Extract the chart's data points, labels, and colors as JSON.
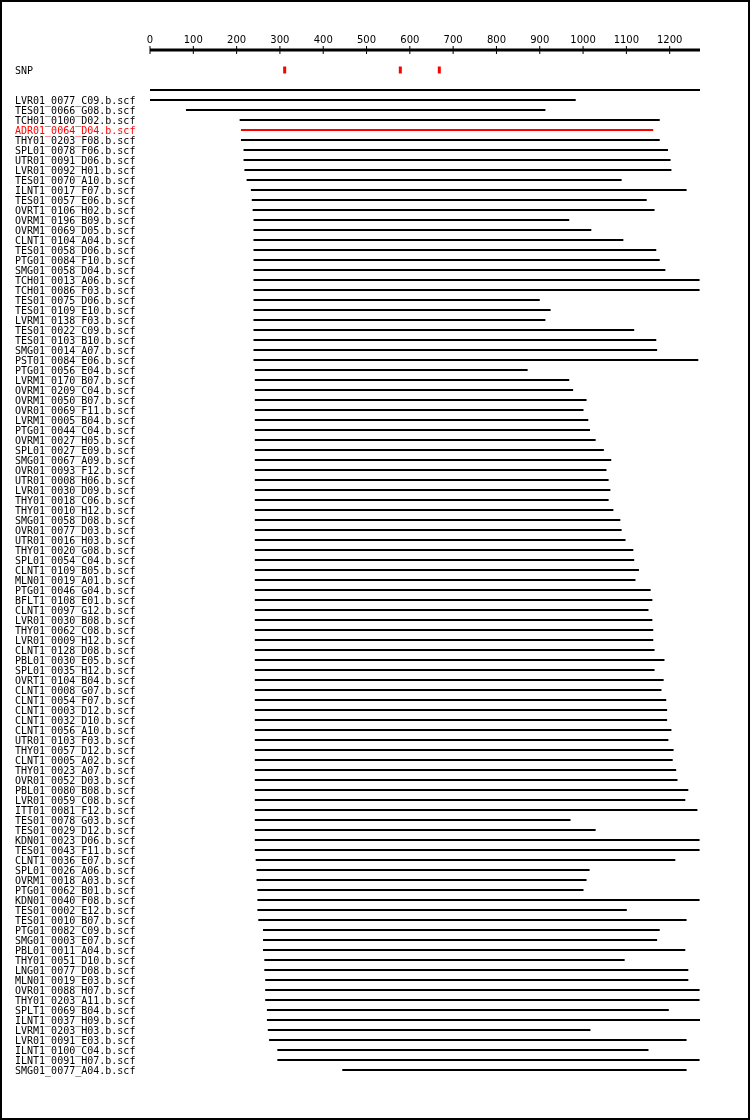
{
  "chart_data": {
    "type": "bar",
    "orientation": "horizontal",
    "marker": "square",
    "xlim": [
      0,
      1270
    ],
    "xticks": [
      0,
      100,
      200,
      300,
      400,
      500,
      600,
      700,
      800,
      900,
      1000,
      1100,
      1200
    ],
    "categories": [
      "SNP",
      null,
      null,
      "LVR01_0077_C09.b.scf",
      "TES01_0066_G08.b.scf",
      "TCH01_0100_D02.b.scf",
      "ADR01_0064_D04.b.scf",
      "THY01_0203_F08.b.scf",
      "SPL01_0078_F06.b.scf",
      "UTR01_0091_D06.b.scf",
      "LVR01_0092_H01.b.scf",
      "TES01_0070_A10.b.scf",
      "ILNT1_0017_F07.b.scf",
      "TES01_0057_E06.b.scf",
      "OVRT1_0106_H02.b.scf",
      "OVRM1_0196_B09.b.scf",
      "OVRM1_0069_D05.b.scf",
      "CLNT1_0104_A04.b.scf",
      "TES01_0058_D06.b.scf",
      "PTG01_0084_F10.b.scf",
      "SMG01_0058_D04.b.scf",
      "TCH01_0013_A06.b.scf",
      "TCH01_0086_F03.b.scf",
      "TES01_0075_D06.b.scf",
      "TES01_0109_E10.b.scf",
      "LVRM1_0138_F03.b.scf",
      "TES01_0022_C09.b.scf",
      "TES01_0103_B10.b.scf",
      "SMG01_0014_A07.b.scf",
      "PST01_0084_E06.b.scf",
      "PTG01_0056_E04.b.scf",
      "LVRM1_0170_B07.b.scf",
      "OVRM1_0209_C04.b.scf",
      "OVRM1_0050_B07.b.scf",
      "OVR01_0069_F11.b.scf",
      "LVRM1_0005_B04.b.scf",
      "PTG01_0044_C04.b.scf",
      "OVRM1_0027_H05.b.scf",
      "SPL01_0027_E09.b.scf",
      "SMG01_0067_A09.b.scf",
      "OVR01_0093_F12.b.scf",
      "UTR01_0008_H06.b.scf",
      "LVR01_0030_D09.b.scf",
      "THY01_0018_C06.b.scf",
      "THY01_0010_H12.b.scf",
      "SMG01_0058_D08.b.scf",
      "OVR01_0077_D03.b.scf",
      "UTR01_0016_H03.b.scf",
      "THY01_0020_G08.b.scf",
      "SPL01_0054_C04.b.scf",
      "CLNT1_0109_B05.b.scf",
      "MLN01_0019_A01.b.scf",
      "PTG01_0046_G04.b.scf",
      "BFLT1_0108_E01.b.scf",
      "CLNT1_0097_G12.b.scf",
      "LVR01_0030_B08.b.scf",
      "THY01_0062_C08.b.scf",
      "LVR01_0009_H12.b.scf",
      "CLNT1_0128_D08.b.scf",
      "PBL01_0030_E05.b.scf",
      "SPL01_0035_H12.b.scf",
      "OVRT1_0104_B04.b.scf",
      "CLNT1_0008_G07.b.scf",
      "CLNT1_0054_F07.b.scf",
      "CLNT1_0003_D12.b.scf",
      "CLNT1_0032_D10.b.scf",
      "CLNT1_0056_A10.b.scf",
      "UTR01_0103_F03.b.scf",
      "THY01_0057_D12.b.scf",
      "CLNT1_0005_A02.b.scf",
      "THY01_0023_A07.b.scf",
      "OVR01_0052_D03.b.scf",
      "PBL01_0080_B08.b.scf",
      "LVR01_0059_C08.b.scf",
      "ITT01_0081_F12.b.scf",
      "TES01_0078_G03.b.scf",
      "TES01_0029_D12.b.scf",
      "KDN01_0023_D06.b.scf",
      "TES01_0043_F11.b.scf",
      "CLNT1_0036_E07.b.scf",
      "SPL01_0026_A06.b.scf",
      "OVRM1_0018_A03.b.scf",
      "PTG01_0062_B01.b.scf",
      "KDN01_0040_F08.b.scf",
      "TES01_0002_E12.b.scf",
      "TES01_0010_B07.b.scf",
      "PTG01_0082_C09.b.scf",
      "SMG01_0003_E07.b.scf",
      "PBL01_0011_A04.b.scf",
      "THY01_0051_D10.b.scf",
      "LNG01_0077_D08.b.scf",
      "MLN01_0019_E03.b.scf",
      "OVR01_0088_H07.b.scf",
      "THY01_0203_A11.b.scf",
      "SPLT1_0069_B04.b.scf",
      "ILNT1_0037_H09.b.scf",
      "LVRM1_0203_H03.b.scf",
      "LVR01_0091_E03.b.scf",
      "ILNT1_0100_C04.b.scf",
      "ILNT1_0091_H07.b.scf",
      "SMG01_0077_A04.b.scf"
    ],
    "series": [
      {
        "base": [
          null,
          null,
          0,
          0,
          83,
          207,
          210,
          210,
          216,
          216,
          218,
          223,
          233,
          235,
          237,
          239,
          239,
          239,
          239,
          239,
          239,
          239,
          239,
          239,
          239,
          239,
          239,
          239,
          239,
          239,
          242,
          242,
          242,
          242,
          242,
          242,
          242,
          242,
          242,
          242,
          242,
          242,
          242,
          242,
          242,
          242,
          242,
          242,
          242,
          242,
          242,
          242,
          242,
          242,
          242,
          242,
          242,
          242,
          242,
          242,
          242,
          242,
          242,
          242,
          242,
          242,
          242,
          242,
          242,
          242,
          242,
          242,
          242,
          242,
          242,
          242,
          242,
          242,
          242,
          244,
          246,
          246,
          248,
          248,
          248,
          250,
          261,
          261,
          261,
          264,
          264,
          266,
          266,
          266,
          270,
          270,
          272,
          275,
          294,
          294,
          444
        ],
        "values": [
          null,
          null,
          1270,
          983,
          830,
          970,
          952,
          967,
          980,
          986,
          986,
          866,
          1006,
          912,
          928,
          729,
          780,
          854,
          930,
          938,
          951,
          1030,
          1030,
          661,
          686,
          674,
          879,
          930,
          932,
          1027,
          630,
          726,
          735,
          766,
          759,
          770,
          774,
          787,
          806,
          823,
          812,
          817,
          821,
          817,
          828,
          844,
          847,
          856,
          874,
          876,
          887,
          879,
          914,
          918,
          909,
          918,
          920,
          920,
          923,
          946,
          923,
          944,
          939,
          950,
          952,
          952,
          962,
          955,
          967,
          965,
          973,
          976,
          1001,
          994,
          1022,
          729,
          787,
          1027,
          1027,
          969,
          769,
          762,
          753,
          1021,
          853,
          989,
          916,
          910,
          975,
          832,
          979,
          977,
          1003,
          1003,
          928,
          1000,
          745,
          964,
          857,
          975,
          795
        ],
        "colors": [
          null,
          null,
          "#000000",
          "#000000",
          "#000000",
          "#000000",
          "#ff0000",
          "#000000",
          "#000000",
          "#000000",
          "#000000",
          "#000000",
          "#000000",
          "#000000",
          "#000000",
          "#000000",
          "#000000",
          "#000000",
          "#000000",
          "#000000",
          "#000000",
          "#000000",
          "#000000",
          "#000000",
          "#000000",
          "#000000",
          "#000000",
          "#000000",
          "#000000",
          "#000000",
          "#000000",
          "#000000",
          "#000000",
          "#000000",
          "#000000",
          "#000000",
          "#000000",
          "#000000",
          "#000000",
          "#000000",
          "#000000",
          "#000000",
          "#000000",
          "#000000",
          "#000000",
          "#000000",
          "#000000",
          "#000000",
          "#000000",
          "#000000",
          "#000000",
          "#000000",
          "#000000",
          "#000000",
          "#000000",
          "#000000",
          "#000000",
          "#000000",
          "#000000",
          "#000000",
          "#000000",
          "#000000",
          "#000000",
          "#000000",
          "#000000",
          "#000000",
          "#000000",
          "#000000",
          "#000000",
          "#000000",
          "#000000",
          "#000000",
          "#000000",
          "#000000",
          "#000000",
          "#000000",
          "#000000",
          "#000000",
          "#000000",
          "#000000",
          "#000000",
          "#000000",
          "#000000",
          "#000000",
          "#000000",
          "#000000",
          "#000000",
          "#000000",
          "#000000",
          "#000000",
          "#000000",
          "#000000",
          "#000000",
          "#000000",
          "#000000",
          "#000000",
          "#000000",
          "#000000",
          "#000000",
          "#000000",
          "#000000"
        ]
      },
      {
        "type": "scatter",
        "x": [
          "SNP",
          "SNP",
          "SNP"
        ],
        "values": [
          311,
          578,
          668
        ],
        "color": "#ff0000"
      }
    ]
  }
}
